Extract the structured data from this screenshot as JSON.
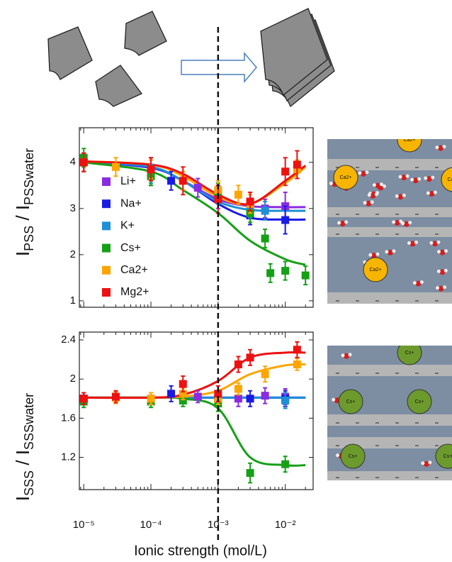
{
  "chart_data": [
    {
      "type": "scatter",
      "log_x": true,
      "legend": "left",
      "ylabel": [
        {
          "text": "I"
        },
        {
          "text": "PSS",
          "sub": true
        },
        {
          "text": " / I"
        },
        {
          "text": "PSSwater",
          "sub": true
        }
      ],
      "xlim": [
        8.6e-06,
        0.026
      ],
      "ylim": [
        0.86,
        4.75
      ],
      "yticks": [
        1.0,
        2.0,
        3.0,
        4.0
      ],
      "fit_x": [
        1e-05,
        0.0001,
        0.0003,
        0.001,
        0.003,
        0.01,
        0.02
      ],
      "series": [
        {
          "name": "Li+",
          "color": "#8a2be2",
          "x": [
            1e-05,
            0.0001,
            0.0005,
            0.001,
            0.005,
            0.01
          ],
          "values": [
            4.0,
            3.8,
            3.45,
            3.2,
            3.0,
            3.05
          ],
          "errors": [
            0.2,
            0.25,
            0.2,
            0.2,
            0.2,
            0.3
          ],
          "fit_values": [
            4.02,
            3.9,
            3.6,
            3.2,
            3.05,
            3.03,
            3.03
          ]
        },
        {
          "name": "Na+",
          "color": "#1a1ae6",
          "x": [
            1e-05,
            0.0001,
            0.0002,
            0.001,
            0.003,
            0.01
          ],
          "values": [
            4.0,
            3.8,
            3.6,
            3.3,
            2.85,
            2.75
          ],
          "errors": [
            0.2,
            0.3,
            0.2,
            0.2,
            0.2,
            0.3
          ],
          "fit_values": [
            4.02,
            3.88,
            3.6,
            3.1,
            2.8,
            2.76,
            2.76
          ]
        },
        {
          "name": "K+",
          "color": "#1f8fd6",
          "x": [
            1e-05,
            0.0001,
            0.001,
            0.003,
            0.005
          ],
          "values": [
            4.0,
            3.75,
            3.3,
            3.0,
            2.95
          ],
          "errors": [
            0.2,
            0.2,
            0.2,
            0.2,
            0.2
          ],
          "fit_values": [
            4.02,
            3.9,
            3.6,
            3.15,
            2.97,
            2.95,
            2.95
          ]
        },
        {
          "name": "Cs+",
          "color": "#16a016",
          "x": [
            1e-05,
            0.0001,
            0.001,
            0.003,
            0.005,
            0.006,
            0.01,
            0.02
          ],
          "values": [
            4.1,
            3.7,
            3.35,
            2.9,
            2.35,
            1.6,
            1.65,
            1.55
          ],
          "errors": [
            0.2,
            0.2,
            0.2,
            0.2,
            0.2,
            0.2,
            0.2,
            0.2
          ],
          "fit_values": [
            4.0,
            3.8,
            3.4,
            2.9,
            2.3,
            1.9,
            1.78
          ]
        },
        {
          "name": "Ca2+",
          "color": "#ffa500",
          "x": [
            1e-05,
            3e-05,
            0.0001,
            0.0003,
            0.001,
            0.002,
            0.003,
            0.015
          ],
          "values": [
            4.0,
            3.9,
            3.85,
            3.6,
            3.4,
            3.3,
            3.1,
            3.85
          ],
          "errors": [
            0.2,
            0.2,
            0.2,
            0.2,
            0.2,
            0.2,
            0.2,
            0.2
          ],
          "fit_values": [
            4.02,
            3.95,
            3.7,
            3.25,
            3.1,
            3.55,
            3.9
          ]
        },
        {
          "name": "Mg2+",
          "color": "#ee1111",
          "x": [
            1e-05,
            0.0001,
            0.0003,
            0.001,
            0.003,
            0.01,
            0.015
          ],
          "values": [
            4.0,
            3.85,
            3.6,
            3.2,
            3.15,
            3.8,
            3.95
          ],
          "errors": [
            0.2,
            0.25,
            0.3,
            0.3,
            0.2,
            0.3,
            0.3
          ],
          "fit_values": [
            4.02,
            3.95,
            3.75,
            3.3,
            3.1,
            3.6,
            3.93
          ]
        }
      ]
    },
    {
      "type": "scatter",
      "log_x": true,
      "vline": 0.001,
      "ylabel": [
        {
          "text": "I"
        },
        {
          "text": "SSS",
          "sub": true
        },
        {
          "text": " / I"
        },
        {
          "text": "SSSwater",
          "sub": true
        }
      ],
      "xlabel": "Ionic strength (mol/L)",
      "xlim": [
        8.6e-06,
        0.026
      ],
      "ylim": [
        0.87,
        2.48
      ],
      "xticks": [
        {
          "value": 1e-05,
          "label": "10⁻⁵"
        },
        {
          "value": 0.0001,
          "label": "10⁻⁴"
        },
        {
          "value": 0.001,
          "label": "10⁻³"
        },
        {
          "value": 0.01,
          "label": "10⁻²"
        }
      ],
      "yticks": [
        1.2,
        1.6,
        2.0,
        2.4
      ],
      "fit_x": [
        1e-05,
        0.0001,
        0.0003,
        0.001,
        0.003,
        0.01,
        0.02
      ],
      "series": [
        {
          "name": "Li+",
          "color": "#8a2be2",
          "x": [
            1e-05,
            0.0001,
            0.0005,
            0.001,
            0.002,
            0.005,
            0.01
          ],
          "values": [
            1.8,
            1.8,
            1.82,
            1.8,
            1.8,
            1.83,
            1.82
          ],
          "errors": [
            0.06,
            0.06,
            0.06,
            0.06,
            0.08,
            0.08,
            0.08
          ],
          "fit_values": [
            1.81,
            1.81,
            1.81,
            1.81,
            1.81,
            1.81,
            1.81
          ]
        },
        {
          "name": "Na+",
          "color": "#1a1ae6",
          "x": [
            1e-05,
            0.0002,
            0.001,
            0.003,
            0.01
          ],
          "values": [
            1.8,
            1.85,
            1.8,
            1.8,
            1.8
          ],
          "errors": [
            0.06,
            0.08,
            0.08,
            0.08,
            0.08
          ],
          "fit_values": [
            1.81,
            1.81,
            1.81,
            1.81,
            1.81,
            1.81,
            1.81
          ]
        },
        {
          "name": "K+",
          "color": "#1f8fd6",
          "x": [
            1e-05,
            0.001,
            0.01
          ],
          "values": [
            1.8,
            1.8,
            1.78
          ],
          "errors": [
            0.06,
            0.06,
            0.08
          ],
          "fit_values": [
            1.81,
            1.81,
            1.81,
            1.81,
            1.81,
            1.81,
            1.81
          ]
        },
        {
          "name": "Cs+",
          "color": "#16a016",
          "x": [
            1e-05,
            0.0001,
            0.0003,
            0.001,
            0.003,
            0.01
          ],
          "values": [
            1.77,
            1.77,
            1.78,
            1.75,
            1.04,
            1.13
          ],
          "errors": [
            0.06,
            0.06,
            0.06,
            0.08,
            0.1,
            0.08
          ],
          "fit_values": [
            1.81,
            1.81,
            1.8,
            1.7,
            1.2,
            1.12,
            1.12
          ]
        },
        {
          "name": "Ca2+",
          "color": "#ffa500",
          "x": [
            3e-05,
            0.0001,
            0.0003,
            0.001,
            0.002,
            0.005,
            0.015
          ],
          "values": [
            1.81,
            1.8,
            1.85,
            1.8,
            1.9,
            2.05,
            2.15
          ],
          "errors": [
            0.06,
            0.06,
            0.06,
            0.06,
            0.06,
            0.08,
            0.06
          ],
          "fit_values": [
            1.81,
            1.81,
            1.82,
            1.88,
            2.05,
            2.14,
            2.15
          ]
        },
        {
          "name": "Mg2+",
          "color": "#ee1111",
          "x": [
            1e-05,
            3e-05,
            0.0003,
            0.001,
            0.002,
            0.003,
            0.015
          ],
          "values": [
            1.8,
            1.82,
            1.95,
            1.85,
            2.15,
            2.22,
            2.3
          ],
          "errors": [
            0.06,
            0.06,
            0.08,
            0.08,
            0.08,
            0.08,
            0.08
          ],
          "fit_values": [
            1.81,
            1.81,
            1.84,
            1.98,
            2.22,
            2.27,
            2.27
          ]
        }
      ]
    }
  ],
  "illustrations": [
    {
      "ions": [
        "Ca2+",
        "Ca2+",
        "Ca2+",
        "Ca2+"
      ]
    },
    {
      "ions": [
        "Cs+",
        "Cs+",
        "Cs+",
        "Cs+",
        "Cs+"
      ]
    }
  ]
}
